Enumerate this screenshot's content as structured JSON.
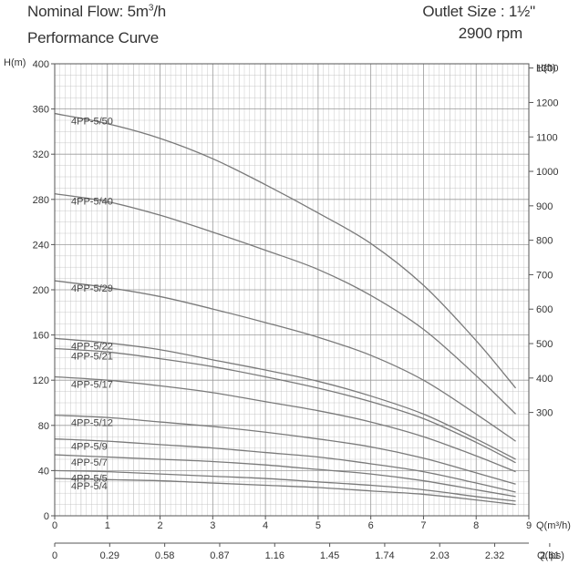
{
  "header": {
    "nominal_flow_prefix": "Nominal Flow: 5m",
    "nominal_flow_sup": "3",
    "nominal_flow_suffix": "/h",
    "subtitle": "Performance Curve",
    "outlet_size": "Outlet Size : 1½\"",
    "speed": "2900 rpm"
  },
  "chart_data": {
    "type": "line",
    "title": "Performance Curve",
    "xlabel": "Q(m³/h)",
    "ylabel": "H(m)",
    "y2label": "H(ft)",
    "x2label": "Q(lps)",
    "xlim": [
      0,
      9
    ],
    "ylim": [
      0,
      400
    ],
    "x_ticks": [
      "0",
      "1",
      "2",
      "3",
      "4",
      "5",
      "6",
      "7",
      "8",
      "9"
    ],
    "y_ticks": [
      "0",
      "40",
      "80",
      "120",
      "160",
      "200",
      "240",
      "280",
      "320",
      "360",
      "400"
    ],
    "y2_ticks": [
      "300",
      "400",
      "500",
      "600",
      "700",
      "800",
      "900",
      "1000",
      "1100",
      "1200",
      "1300"
    ],
    "x2_ticks": [
      "0",
      "0.29",
      "0.58",
      "0.87",
      "1.16",
      "1.45",
      "1.74",
      "2.03",
      "2.32",
      "2.61"
    ],
    "grid": true,
    "x": [
      0,
      1,
      2,
      3,
      4,
      5,
      6,
      7,
      8,
      8.75
    ],
    "series": [
      {
        "name": "4PP-5/50",
        "values": [
          356,
          347,
          334,
          316,
          293,
          268,
          241,
          204,
          155,
          113
        ]
      },
      {
        "name": "4PP-5/40",
        "values": [
          285,
          278,
          266,
          251,
          235,
          218,
          195,
          165,
          124,
          90
        ]
      },
      {
        "name": "4PP-5/29",
        "values": [
          208,
          202,
          194,
          183,
          171,
          158,
          142,
          120,
          90,
          66
        ]
      },
      {
        "name": "4PP-5/22",
        "values": [
          157,
          153,
          147,
          138,
          129,
          119,
          106,
          90,
          68,
          50
        ]
      },
      {
        "name": "4PP-5/21",
        "values": [
          148,
          145,
          139,
          132,
          123,
          113,
          101,
          86,
          65,
          47
        ]
      },
      {
        "name": "4PP-5/17",
        "values": [
          123,
          120,
          115,
          109,
          101,
          93,
          83,
          70,
          53,
          39
        ]
      },
      {
        "name": "4PP-5/12",
        "values": [
          89,
          87,
          83,
          79,
          74,
          68,
          61,
          51,
          38,
          28
        ]
      },
      {
        "name": "4PP-5/9",
        "values": [
          68,
          66,
          63,
          60,
          56,
          52,
          46,
          39,
          29,
          21
        ]
      },
      {
        "name": "4PP-5/7",
        "values": [
          54,
          52,
          50,
          48,
          45,
          41,
          37,
          31,
          23,
          17
        ]
      },
      {
        "name": "4PP-5/5",
        "values": [
          40,
          39,
          37,
          35,
          33,
          30,
          27,
          23,
          17,
          13
        ]
      },
      {
        "name": "4PP-5/4",
        "values": [
          33,
          32,
          31,
          29,
          27,
          25,
          22,
          19,
          14,
          10
        ]
      }
    ],
    "label_color": "#444444",
    "line_color": "#7a7a7a",
    "grid_color": "#bdbdbd"
  }
}
